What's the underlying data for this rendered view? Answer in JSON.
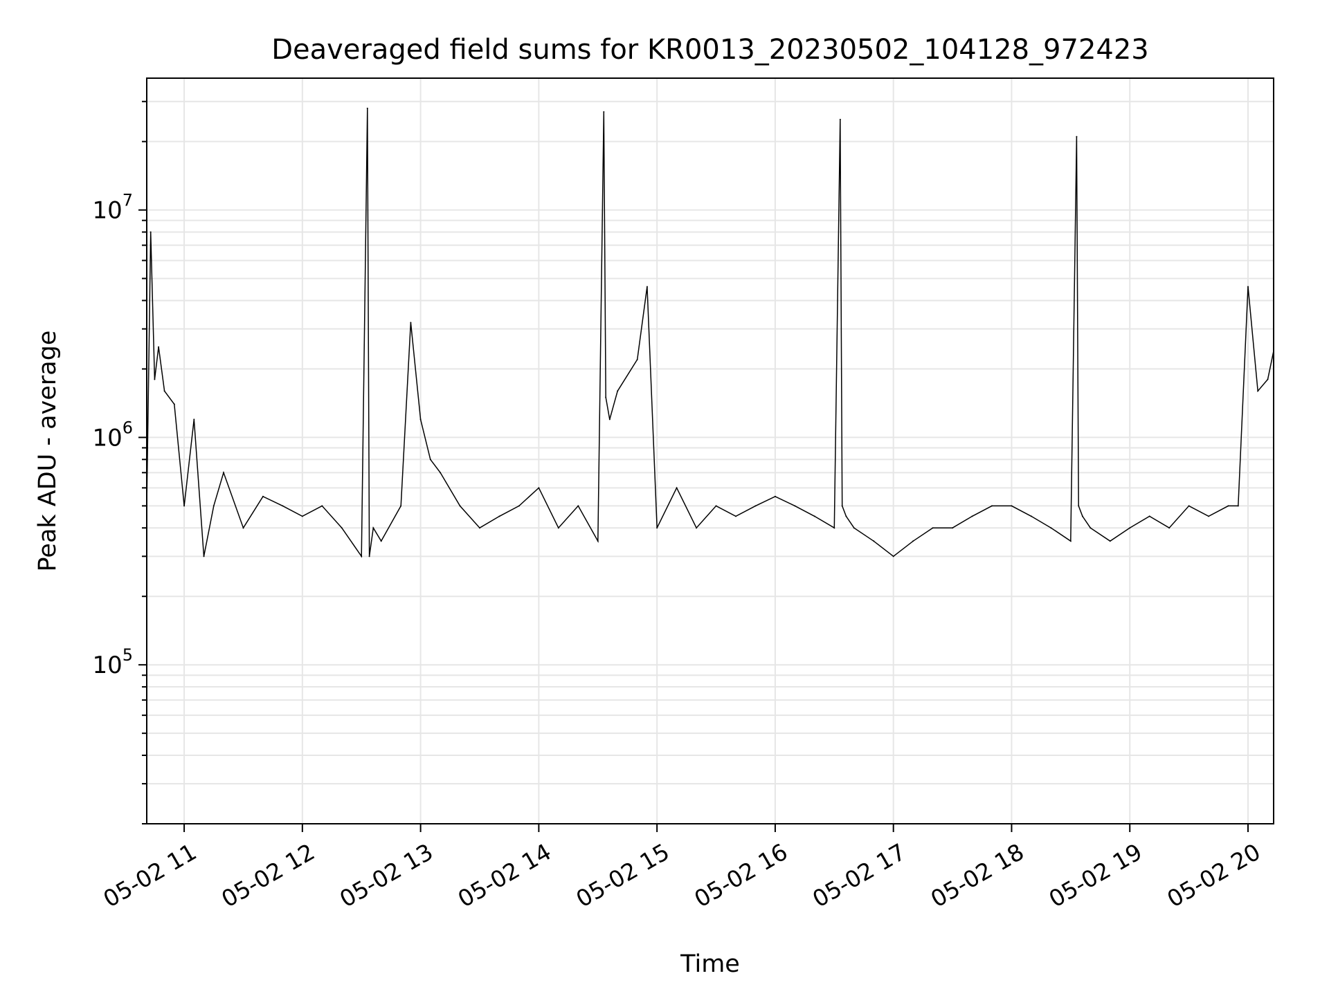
{
  "chart_data": {
    "type": "line",
    "title": "Deaveraged field sums for KR0013_20230502_104128_972423",
    "xlabel": "Time",
    "ylabel": "Peak ADU - average",
    "xlim": [
      "2023-05-02 10:41",
      "2023-05-02 20:13"
    ],
    "ylim": [
      20000,
      38000000
    ],
    "yscale": "log",
    "grid": true,
    "line_color": "#000000",
    "grid_color": "#e6e6e6",
    "x_ticks": [
      {
        "t": "2023-05-02 11:00",
        "label": "05-02 11"
      },
      {
        "t": "2023-05-02 12:00",
        "label": "05-02 12"
      },
      {
        "t": "2023-05-02 13:00",
        "label": "05-02 13"
      },
      {
        "t": "2023-05-02 14:00",
        "label": "05-02 14"
      },
      {
        "t": "2023-05-02 15:00",
        "label": "05-02 15"
      },
      {
        "t": "2023-05-02 16:00",
        "label": "05-02 16"
      },
      {
        "t": "2023-05-02 17:00",
        "label": "05-02 17"
      },
      {
        "t": "2023-05-02 18:00",
        "label": "05-02 18"
      },
      {
        "t": "2023-05-02 19:00",
        "label": "05-02 19"
      },
      {
        "t": "2023-05-02 20:00",
        "label": "05-02 20"
      }
    ],
    "y_ticks": [
      {
        "value": 100000,
        "base": "10",
        "exp": "5"
      },
      {
        "value": 1000000,
        "base": "10",
        "exp": "6"
      },
      {
        "value": 10000000,
        "base": "10",
        "exp": "7"
      }
    ],
    "series": [
      {
        "x": [
          "10:41",
          "10:43",
          "10:45",
          "10:47",
          "10:50",
          "10:55",
          "11:00",
          "11:05",
          "11:10",
          "11:15",
          "11:20",
          "11:30",
          "11:40",
          "11:50",
          "12:00",
          "12:10",
          "12:20",
          "12:30",
          "12:33",
          "12:34",
          "12:36",
          "12:40",
          "12:50",
          "12:55",
          "13:00",
          "13:05",
          "13:10",
          "13:20",
          "13:30",
          "13:40",
          "13:50",
          "14:00",
          "14:10",
          "14:20",
          "14:30",
          "14:33",
          "14:34",
          "14:36",
          "14:40",
          "14:50",
          "14:55",
          "15:00",
          "15:10",
          "15:20",
          "15:30",
          "15:40",
          "15:50",
          "16:00",
          "16:10",
          "16:20",
          "16:30",
          "16:33",
          "16:34",
          "16:36",
          "16:40",
          "16:50",
          "17:00",
          "17:10",
          "17:20",
          "17:30",
          "17:40",
          "17:50",
          "18:00",
          "18:10",
          "18:20",
          "18:30",
          "18:33",
          "18:34",
          "18:36",
          "18:40",
          "18:50",
          "19:00",
          "19:10",
          "19:20",
          "19:30",
          "19:40",
          "19:50",
          "19:55",
          "20:00",
          "20:05",
          "20:10",
          "20:13"
        ],
        "y": [
          500000,
          8000000,
          1800000,
          2500000,
          1600000,
          1400000,
          500000,
          1200000,
          300000,
          500000,
          700000,
          400000,
          550000,
          500000,
          450000,
          500000,
          400000,
          300000,
          28000000,
          300000,
          400000,
          350000,
          500000,
          3200000,
          1200000,
          800000,
          700000,
          500000,
          400000,
          450000,
          500000,
          600000,
          400000,
          500000,
          350000,
          27000000,
          1500000,
          1200000,
          1600000,
          2200000,
          4600000,
          400000,
          600000,
          400000,
          500000,
          450000,
          500000,
          550000,
          500000,
          450000,
          400000,
          25000000,
          500000,
          450000,
          400000,
          350000,
          300000,
          350000,
          400000,
          400000,
          450000,
          500000,
          500000,
          450000,
          400000,
          350000,
          21000000,
          500000,
          450000,
          400000,
          350000,
          400000,
          450000,
          400000,
          500000,
          450000,
          500000,
          500000,
          4600000,
          1600000,
          1800000,
          2400000
        ]
      }
    ]
  }
}
